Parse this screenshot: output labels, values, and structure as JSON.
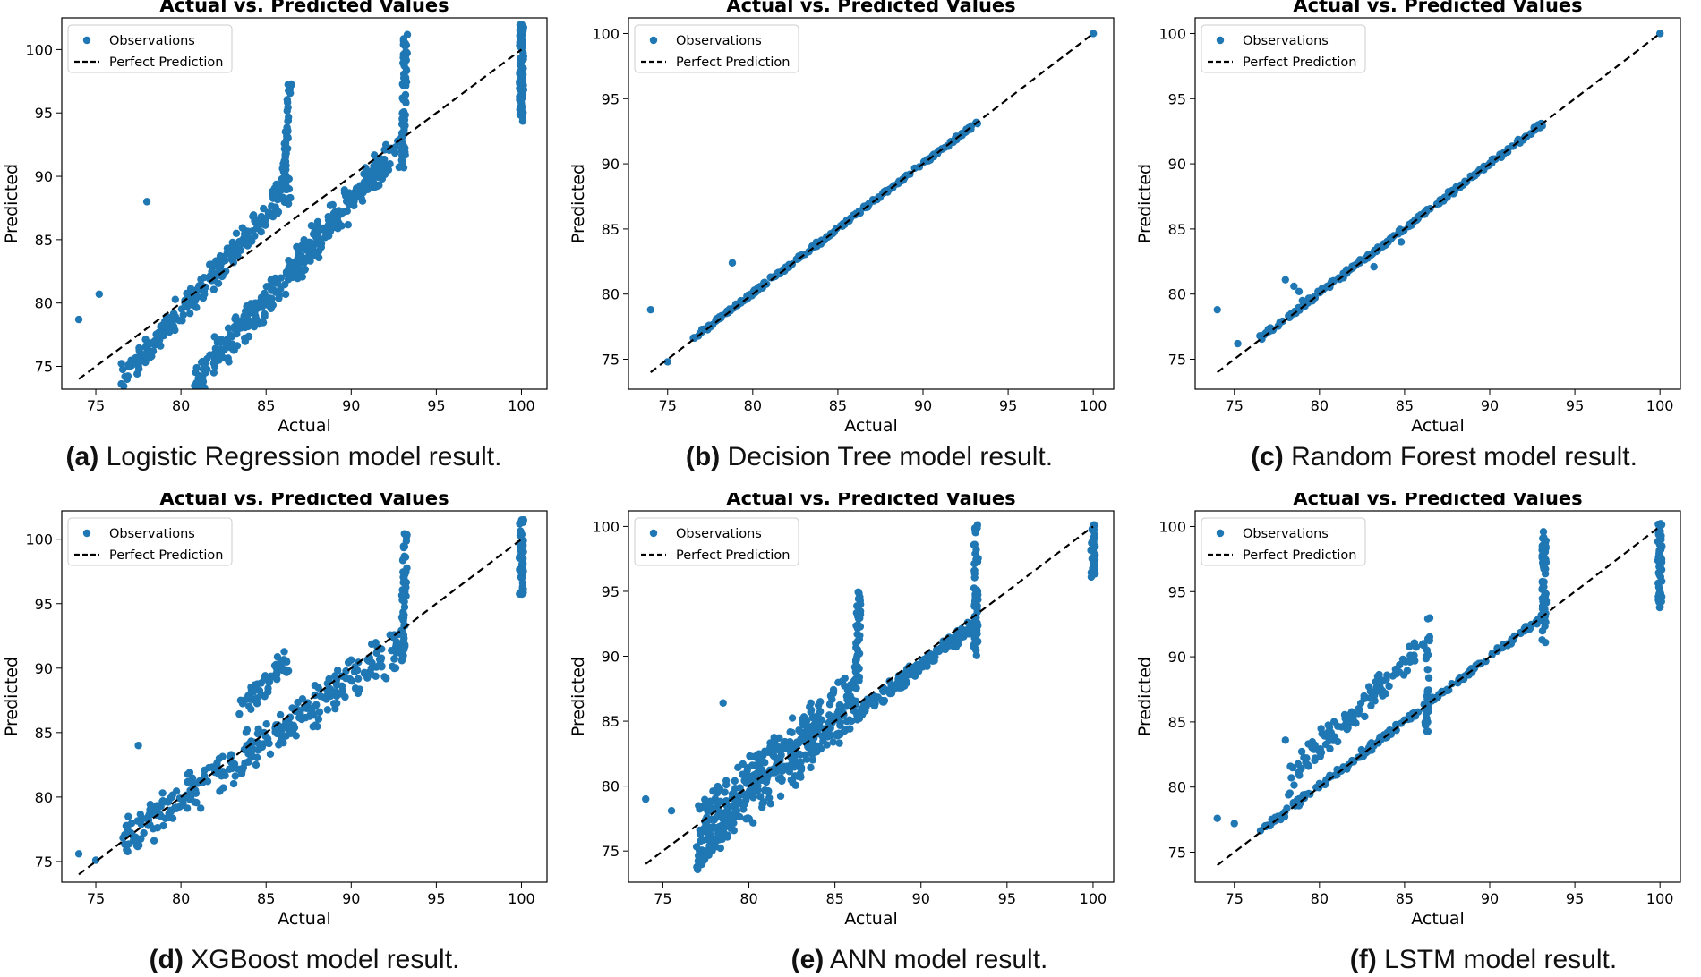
{
  "colors": {
    "point": "#1f77b4",
    "line": "#000000",
    "frame": "#000000"
  },
  "chart_data": [
    {
      "id": "a",
      "type": "scatter",
      "title": "Actual vs. Predicted Values",
      "xlabel": "Actual",
      "ylabel": "Predicted",
      "xlim": [
        73,
        101.5
      ],
      "ylim": [
        73.2,
        102.5
      ],
      "xticks": [
        75,
        80,
        85,
        90,
        95,
        100
      ],
      "yticks": [
        75,
        80,
        85,
        90,
        95,
        100
      ],
      "legend": {
        "position": "top-left",
        "entries": [
          "Observations",
          "Perfect Prediction"
        ]
      },
      "reference_line": {
        "name": "Perfect Prediction",
        "x": [
          74,
          100
        ],
        "y": [
          74,
          100
        ]
      },
      "caption": {
        "tag": "(a)",
        "text": "Logistic Regression model result."
      },
      "clusters": [
        {
          "from": [
            76.5,
            74.0
          ],
          "to": [
            86.3,
            89.0
          ],
          "halfwidth": 1.3,
          "n": 260
        },
        {
          "from": [
            86.0,
            89.0
          ],
          "to": [
            86.4,
            97.5
          ],
          "halfwidth": 0.2,
          "n": 50
        },
        {
          "from": [
            80.8,
            73.8
          ],
          "to": [
            93.2,
            93.0
          ],
          "halfwidth": 1.7,
          "n": 340
        },
        {
          "from": [
            93.0,
            90.0
          ],
          "to": [
            93.2,
            101.3
          ],
          "halfwidth": 0.15,
          "n": 70
        },
        {
          "from": [
            100,
            94.3
          ],
          "to": [
            100,
            102.2
          ],
          "halfwidth": 0.12,
          "n": 70
        }
      ],
      "points": [
        [
          74.0,
          78.7
        ],
        [
          75.2,
          80.7
        ],
        [
          78.0,
          88.0
        ]
      ]
    },
    {
      "id": "b",
      "type": "scatter",
      "title": "Actual vs. Predicted Values",
      "xlabel": "Actual",
      "ylabel": "Predicted",
      "xlim": [
        72.7,
        101.2
      ],
      "ylim": [
        72.7,
        101.2
      ],
      "xticks": [
        75,
        80,
        85,
        90,
        95,
        100
      ],
      "yticks": [
        75,
        80,
        85,
        90,
        95,
        100
      ],
      "legend": {
        "position": "top-left",
        "entries": [
          "Observations",
          "Perfect Prediction"
        ]
      },
      "reference_line": {
        "name": "Perfect Prediction",
        "x": [
          74,
          100
        ],
        "y": [
          74,
          100
        ]
      },
      "caption": {
        "tag": "(b)",
        "text": "Decision Tree model result."
      },
      "clusters": [
        {
          "from": [
            76.5,
            76.6
          ],
          "to": [
            93.2,
            93.2
          ],
          "halfwidth": 0.1,
          "n": 220
        }
      ],
      "points": [
        [
          74.0,
          78.8
        ],
        [
          75.0,
          74.8
        ],
        [
          78.8,
          82.4
        ],
        [
          100.0,
          100.0
        ]
      ]
    },
    {
      "id": "c",
      "type": "scatter",
      "title": "Actual vs. Predicted Values",
      "xlabel": "Actual",
      "ylabel": "Predicted",
      "xlim": [
        72.7,
        101.2
      ],
      "ylim": [
        72.7,
        101.2
      ],
      "xticks": [
        75,
        80,
        85,
        90,
        95,
        100
      ],
      "yticks": [
        75,
        80,
        85,
        90,
        95,
        100
      ],
      "legend": {
        "position": "top-left",
        "entries": [
          "Observations",
          "Perfect Prediction"
        ]
      },
      "reference_line": {
        "name": "Perfect Prediction",
        "x": [
          74,
          100
        ],
        "y": [
          74,
          100
        ]
      },
      "caption": {
        "tag": "(c)",
        "text": "Random Forest model result."
      },
      "clusters": [
        {
          "from": [
            76.5,
            76.6
          ],
          "to": [
            93.2,
            93.2
          ],
          "halfwidth": 0.15,
          "n": 240
        }
      ],
      "points": [
        [
          74.0,
          78.8
        ],
        [
          75.2,
          76.2
        ],
        [
          76.5,
          76.8
        ],
        [
          77.0,
          77.3
        ],
        [
          78.0,
          81.1
        ],
        [
          78.5,
          80.6
        ],
        [
          78.8,
          80.2
        ],
        [
          79.0,
          79.5
        ],
        [
          83.2,
          82.1
        ],
        [
          84.8,
          84.0
        ],
        [
          100.0,
          100.0
        ]
      ]
    },
    {
      "id": "d",
      "type": "scatter",
      "title": "Actual vs. Predicted Values",
      "xlabel": "Actual",
      "ylabel": "Predicted",
      "xlim": [
        73,
        101.5
      ],
      "ylim": [
        73.4,
        102.2
      ],
      "xticks": [
        75,
        80,
        85,
        90,
        95,
        100
      ],
      "yticks": [
        75,
        80,
        85,
        90,
        95,
        100
      ],
      "legend": {
        "position": "top-left",
        "entries": [
          "Observations",
          "Perfect Prediction"
        ]
      },
      "reference_line": {
        "name": "Perfect Prediction",
        "x": [
          74,
          100
        ],
        "y": [
          74,
          100
        ]
      },
      "caption": {
        "tag": "(d)",
        "text": "XGBoost model result."
      },
      "clusters": [
        {
          "from": [
            76.5,
            76.5
          ],
          "to": [
            93.0,
            91.8
          ],
          "halfwidth": 2.0,
          "n": 300
        },
        {
          "from": [
            83.5,
            87.0
          ],
          "to": [
            86.3,
            90.5
          ],
          "halfwidth": 1.2,
          "n": 60
        },
        {
          "from": [
            93.0,
            90.5
          ],
          "to": [
            93.2,
            100.4
          ],
          "halfwidth": 0.15,
          "n": 60
        },
        {
          "from": [
            100,
            95.5
          ],
          "to": [
            100,
            101.6
          ],
          "halfwidth": 0.12,
          "n": 55
        }
      ],
      "points": [
        [
          74.0,
          75.6
        ],
        [
          75.0,
          75.1
        ],
        [
          77.5,
          84.0
        ]
      ]
    },
    {
      "id": "e",
      "type": "scatter",
      "title": "Actual vs. Predicted Values",
      "xlabel": "Actual",
      "ylabel": "Predicted",
      "xlim": [
        73,
        101.2
      ],
      "ylim": [
        72.6,
        101.2
      ],
      "xticks": [
        75,
        80,
        85,
        90,
        95,
        100
      ],
      "yticks": [
        75,
        80,
        85,
        90,
        95,
        100
      ],
      "legend": {
        "position": "top-left",
        "entries": [
          "Observations",
          "Perfect Prediction"
        ]
      },
      "reference_line": {
        "name": "Perfect Prediction",
        "x": [
          74,
          100
        ],
        "y": [
          74,
          100
        ]
      },
      "caption": {
        "tag": "(e)",
        "text": "ANN model result."
      },
      "clusters": [
        {
          "from": [
            77.0,
            76.5
          ],
          "to": [
            86.4,
            86.8
          ],
          "halfwidth": 3.0,
          "n": 420
        },
        {
          "from": [
            86.2,
            85.5
          ],
          "to": [
            93.0,
            92.3
          ],
          "halfwidth": 0.7,
          "n": 160
        },
        {
          "from": [
            86.3,
            88.0
          ],
          "to": [
            86.4,
            95.0
          ],
          "halfwidth": 0.15,
          "n": 40
        },
        {
          "from": [
            93.2,
            90.0
          ],
          "to": [
            93.2,
            100.1
          ],
          "halfwidth": 0.15,
          "n": 60
        },
        {
          "from": [
            100,
            96.0
          ],
          "to": [
            100,
            100.4
          ],
          "halfwidth": 0.12,
          "n": 35
        },
        {
          "from": [
            77.0,
            73.7
          ],
          "to": [
            79.0,
            77.5
          ],
          "halfwidth": 0.6,
          "n": 40
        }
      ],
      "points": [
        [
          74.0,
          79.0
        ],
        [
          75.5,
          78.1
        ],
        [
          78.5,
          86.4
        ]
      ]
    },
    {
      "id": "f",
      "type": "scatter",
      "title": "Actual vs. Predicted Values",
      "xlabel": "Actual",
      "ylabel": "Predicted",
      "xlim": [
        72.7,
        101.2
      ],
      "ylim": [
        72.7,
        101.2
      ],
      "xticks": [
        75,
        80,
        85,
        90,
        95,
        100
      ],
      "yticks": [
        75,
        80,
        85,
        90,
        95,
        100
      ],
      "legend": {
        "position": "top-left",
        "entries": [
          "Observations",
          "Perfect Prediction"
        ]
      },
      "reference_line": {
        "name": "Perfect Prediction",
        "x": [
          74,
          100
        ],
        "y": [
          74,
          100
        ]
      },
      "caption": {
        "tag": "(f)",
        "text": "LSTM model result."
      },
      "clusters": [
        {
          "from": [
            76.5,
            76.6
          ],
          "to": [
            93.2,
            93.2
          ],
          "halfwidth": 0.3,
          "n": 200
        },
        {
          "from": [
            78.0,
            80.5
          ],
          "to": [
            86.2,
            91.0
          ],
          "halfwidth": 1.3,
          "n": 120
        },
        {
          "from": [
            86.3,
            84.0
          ],
          "to": [
            86.4,
            93.0
          ],
          "halfwidth": 0.15,
          "n": 30
        },
        {
          "from": [
            93.2,
            91.0
          ],
          "to": [
            93.2,
            100.0
          ],
          "halfwidth": 0.15,
          "n": 60
        },
        {
          "from": [
            100,
            93.8
          ],
          "to": [
            100,
            100.3
          ],
          "halfwidth": 0.12,
          "n": 55
        }
      ],
      "points": [
        [
          74.0,
          77.6
        ],
        [
          75.0,
          77.2
        ],
        [
          78.0,
          83.6
        ]
      ]
    }
  ]
}
